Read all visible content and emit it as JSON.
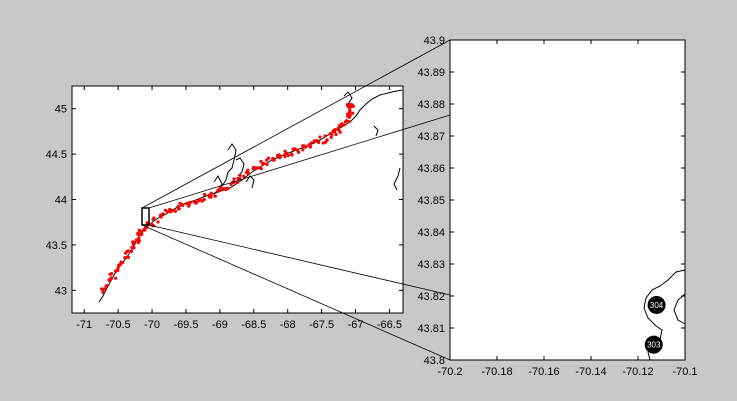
{
  "map_overview": {
    "x_ticks": [
      {
        "value": -71,
        "label": "-71"
      },
      {
        "value": -70.5,
        "label": "-70.5"
      },
      {
        "value": -70,
        "label": "-70"
      },
      {
        "value": -69.5,
        "label": "-69.5"
      },
      {
        "value": -69,
        "label": "-69"
      },
      {
        "value": -68.5,
        "label": "-68.5"
      },
      {
        "value": -68,
        "label": "-68"
      },
      {
        "value": -67.5,
        "label": "-67.5"
      },
      {
        "value": -67,
        "label": "-67"
      },
      {
        "value": -66.5,
        "label": "-66.5"
      }
    ],
    "y_ticks": [
      {
        "value": 43,
        "label": "43"
      },
      {
        "value": 43.5,
        "label": "43.5"
      },
      {
        "value": 44,
        "label": "44"
      },
      {
        "value": 44.5,
        "label": "44.5"
      },
      {
        "value": 45,
        "label": "45"
      }
    ],
    "xlim": [
      -71.18,
      -66.3
    ],
    "ylim": [
      42.75,
      45.25
    ],
    "zoom_box": {
      "lon": [
        -70.2,
        -70.1
      ],
      "lat": [
        43.8,
        43.9
      ]
    },
    "coast_color": "#000000",
    "station_color": "#ff0000"
  },
  "map_zoom": {
    "x_ticks": [
      {
        "value": -70.2,
        "label": "-70.2"
      },
      {
        "value": -70.18,
        "label": "-70.18"
      },
      {
        "value": -70.16,
        "label": "-70.16"
      },
      {
        "value": -70.14,
        "label": "-70.14"
      },
      {
        "value": -70.12,
        "label": "-70.12"
      },
      {
        "value": -70.1,
        "label": "-70.1"
      }
    ],
    "y_ticks": [
      {
        "value": 43.8,
        "label": "43.8"
      },
      {
        "value": 43.81,
        "label": "43.81"
      },
      {
        "value": 43.82,
        "label": "43.82"
      },
      {
        "value": 43.83,
        "label": "43.83"
      },
      {
        "value": 43.84,
        "label": "43.84"
      },
      {
        "value": 43.85,
        "label": "43.85"
      },
      {
        "value": 43.86,
        "label": "43.86"
      },
      {
        "value": 43.87,
        "label": "43.87"
      },
      {
        "value": 43.88,
        "label": "43.88"
      },
      {
        "value": 43.89,
        "label": "43.89"
      },
      {
        "value": 43.9,
        "label": "43.9"
      }
    ],
    "xlim": [
      -70.2,
      -70.1
    ],
    "ylim": [
      43.8,
      43.9
    ],
    "stations": [
      {
        "id": "304",
        "lon": -70.1121,
        "lat": 43.8172
      },
      {
        "id": "303",
        "lon": -70.1133,
        "lat": 43.8048
      }
    ]
  }
}
